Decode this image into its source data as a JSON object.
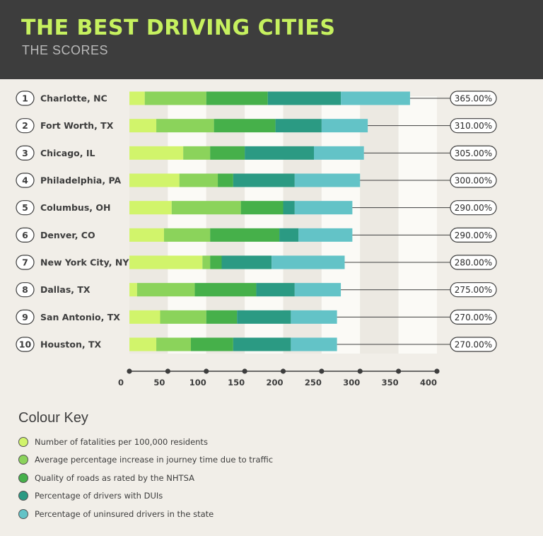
{
  "header": {
    "title": "THE BEST DRIVING CITIES",
    "subtitle": "THE SCORES"
  },
  "chart_data": {
    "type": "bar",
    "stacked": true,
    "orientation": "horizontal",
    "ranks": [
      "1",
      "2",
      "3",
      "4",
      "5",
      "6",
      "7",
      "8",
      "9",
      "10"
    ],
    "categories": [
      "Charlotte, NC",
      "Fort Worth, TX",
      "Chicago, IL",
      "Philadelphia, PA",
      "Columbus, OH",
      "Denver, CO",
      "New York City, NY",
      "Dallas, TX",
      "San Antonio, TX",
      "Houston, TX"
    ],
    "series": [
      {
        "name": "Number of fatalities per 100,000 residents",
        "color": "#d1f46b",
        "values": [
          20,
          35,
          70,
          65,
          55,
          45,
          95,
          10,
          40,
          35
        ]
      },
      {
        "name": "Average percentage increase in journey time due to traffic",
        "color": "#8bd35b",
        "values": [
          80,
          75,
          35,
          50,
          90,
          60,
          10,
          75,
          60,
          45
        ]
      },
      {
        "name": "Quality of roads as rated by the NHTSA",
        "color": "#46b04a",
        "values": [
          80,
          80,
          45,
          20,
          55,
          90,
          15,
          80,
          40,
          55
        ]
      },
      {
        "name": "Percentage of drivers with DUIs",
        "color": "#2b9a83",
        "values": [
          95,
          60,
          90,
          80,
          15,
          25,
          65,
          50,
          70,
          75
        ]
      },
      {
        "name": "Percentage of uninsured drivers in the state",
        "color": "#63c3c7",
        "values": [
          90,
          60,
          65,
          85,
          75,
          70,
          95,
          60,
          60,
          60
        ]
      }
    ],
    "totals": [
      "365.00%",
      "310.00%",
      "305.00%",
      "300.00%",
      "290.00%",
      "290.00%",
      "280.00%",
      "275.00%",
      "270.00%",
      "270.00%"
    ],
    "xticks": [
      "0",
      "50",
      "100",
      "150",
      "200",
      "250",
      "300",
      "350",
      "400"
    ],
    "xlim": [
      0,
      400
    ],
    "grid": true
  },
  "legend": {
    "title": "Colour Key"
  }
}
